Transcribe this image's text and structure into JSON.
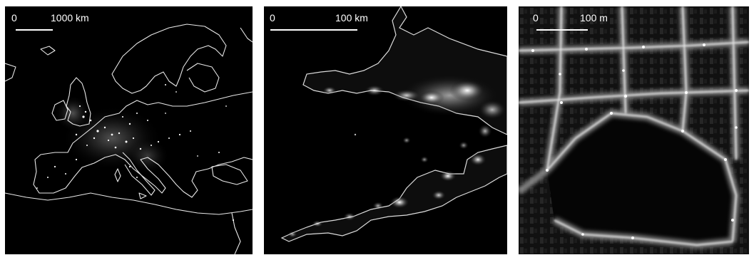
{
  "panels": [
    {
      "scale": {
        "zero": "0",
        "label": "1000 km"
      },
      "subject": "night lights of Europe"
    },
    {
      "scale": {
        "zero": "0",
        "label": "100 km"
      },
      "subject": "night lights of south-west England and south Wales"
    },
    {
      "scale": {
        "zero": "0",
        "label": "100 m"
      },
      "subject": "night lights of an urban street grid"
    }
  ]
}
